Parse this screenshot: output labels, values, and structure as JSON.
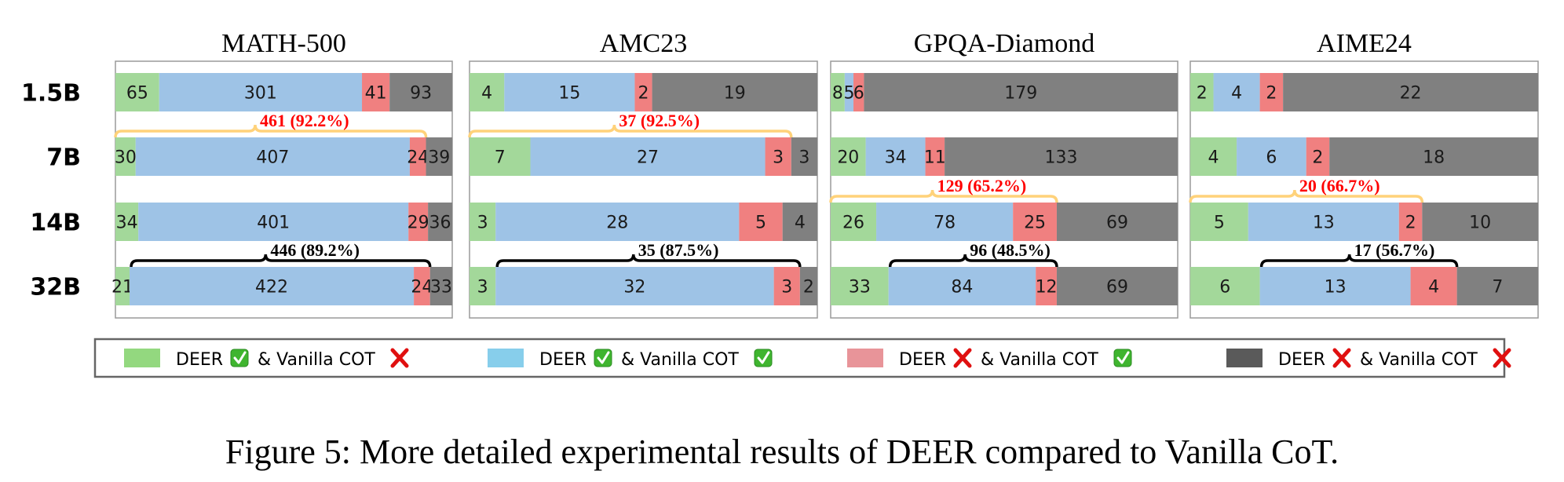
{
  "chart_data": {
    "type": "bar",
    "orientation": "horizontal-stacked",
    "rows": [
      "1.5B",
      "7B",
      "14B",
      "32B"
    ],
    "categories": [
      "DEER ✓ & Vanilla COT ✗",
      "DEER ✓ & Vanilla COT ✓",
      "DEER ✗ & Vanilla COT ✓",
      "DEER ✗ & Vanilla COT ✗"
    ],
    "colors": [
      "#a3d89a",
      "#9ec3e6",
      "#f08080",
      "#808080"
    ],
    "panels": [
      {
        "title": "MATH-500",
        "values": [
          [
            65,
            301,
            41,
            93
          ],
          [
            30,
            407,
            24,
            39
          ],
          [
            34,
            401,
            29,
            36
          ],
          [
            21,
            422,
            24,
            33
          ]
        ],
        "annotations": [
          {
            "row": "7B",
            "span": "DEER ✓ & Vanilla COT ✓ + DEER ✗ & Vanilla COT ✓",
            "label": "461 (92.2%)",
            "color": "#ff0000",
            "brace_color": "#ffd27a"
          },
          {
            "row": "32B",
            "span": "DEER ✓ & Vanilla COT ✓ + DEER ✗ & Vanilla COT ✓",
            "label": "446 (89.2%)",
            "color": "#000000",
            "brace_color": "#000000"
          }
        ]
      },
      {
        "title": "AMC23",
        "values": [
          [
            4,
            15,
            2,
            19
          ],
          [
            7,
            27,
            3,
            3
          ],
          [
            3,
            28,
            5,
            4
          ],
          [
            3,
            32,
            3,
            2
          ]
        ],
        "annotations": [
          {
            "row": "7B",
            "span": "DEER ✓ total",
            "label": "37 (92.5%)",
            "color": "#ff0000",
            "brace_color": "#ffd27a"
          },
          {
            "row": "32B",
            "span": "DEER ✓ & Vanilla COT ✓ + DEER ✗ & Vanilla COT ✓",
            "label": "35 (87.5%)",
            "color": "#000000",
            "brace_color": "#000000"
          }
        ]
      },
      {
        "title": "GPQA-Diamond",
        "values": [
          [
            8,
            5,
            6,
            179
          ],
          [
            20,
            34,
            11,
            133
          ],
          [
            26,
            78,
            25,
            69
          ],
          [
            33,
            84,
            12,
            69
          ]
        ],
        "annotations": [
          {
            "row": "14B",
            "span": "first three segments",
            "label": "129 (65.2%)",
            "color": "#ff0000",
            "brace_color": "#ffd27a"
          },
          {
            "row": "32B",
            "span": "DEER ✓ & Vanilla COT ✓ + DEER ✗ & Vanilla COT ✓",
            "label": "96 (48.5%)",
            "color": "#000000",
            "brace_color": "#000000"
          }
        ]
      },
      {
        "title": "AIME24",
        "values": [
          [
            2,
            4,
            2,
            22
          ],
          [
            4,
            6,
            2,
            18
          ],
          [
            5,
            13,
            2,
            10
          ],
          [
            6,
            13,
            4,
            7
          ]
        ],
        "annotations": [
          {
            "row": "14B",
            "span": "first three segments",
            "label": "20 (66.7%)",
            "color": "#ff0000",
            "brace_color": "#ffd27a"
          },
          {
            "row": "32B",
            "span": "DEER ✓ & Vanilla COT ✓ + DEER ✗ & Vanilla COT ✓",
            "label": "17 (56.7%)",
            "color": "#000000",
            "brace_color": "#000000"
          }
        ]
      }
    ],
    "legend": {
      "placement": "bottom",
      "items": [
        {
          "color": "#93d87f",
          "deer_label": "DEER",
          "deer_mark": "check",
          "vanilla_label": "& Vanilla COT",
          "vanilla_mark": "cross"
        },
        {
          "color": "#87ceeb",
          "deer_label": "DEER",
          "deer_mark": "check",
          "vanilla_label": "& Vanilla COT",
          "vanilla_mark": "check"
        },
        {
          "color": "#e89499",
          "deer_label": "DEER",
          "deer_mark": "cross",
          "vanilla_label": "& Vanilla COT",
          "vanilla_mark": "check"
        },
        {
          "color": "#5a5a5a",
          "deer_label": "DEER",
          "deer_mark": "cross",
          "vanilla_label": "& Vanilla COT",
          "vanilla_mark": "cross"
        }
      ]
    },
    "caption": "Figure 5: More detailed experimental results of DEER compared to Vanilla CoT."
  }
}
